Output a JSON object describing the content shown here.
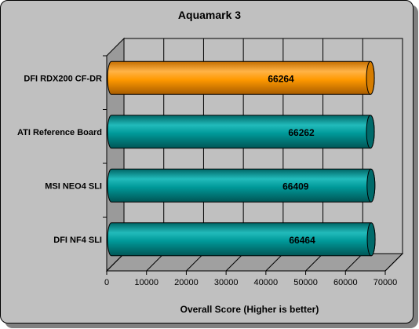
{
  "chart_data": {
    "type": "bar",
    "orientation": "horizontal",
    "title": "Aquamark 3",
    "xlabel": "Overall Score (Higher is better)",
    "ylabel": "",
    "categories": [
      "DFI RDX200 CF-DR",
      "ATI Reference Board",
      "MSI NEO4 SLI",
      "DFI NF4 SLI"
    ],
    "values": [
      66264,
      66262,
      66409,
      66464
    ],
    "value_labels": [
      "66264",
      "66262",
      "66409",
      "66464"
    ],
    "bar_colors": [
      "#ff9900",
      "#009999",
      "#009999",
      "#009999"
    ],
    "xlim": [
      0,
      70000
    ],
    "xticks": [
      "0",
      "10000",
      "20000",
      "30000",
      "40000",
      "50000",
      "60000",
      "70000"
    ],
    "grid": true,
    "style": "3d-cylinder"
  },
  "colors": {
    "panel_bg": "#c0c0c0",
    "plot_wall": "#c0c0c0",
    "plot_floor": "#a0a0a0",
    "grid": "#000000"
  }
}
